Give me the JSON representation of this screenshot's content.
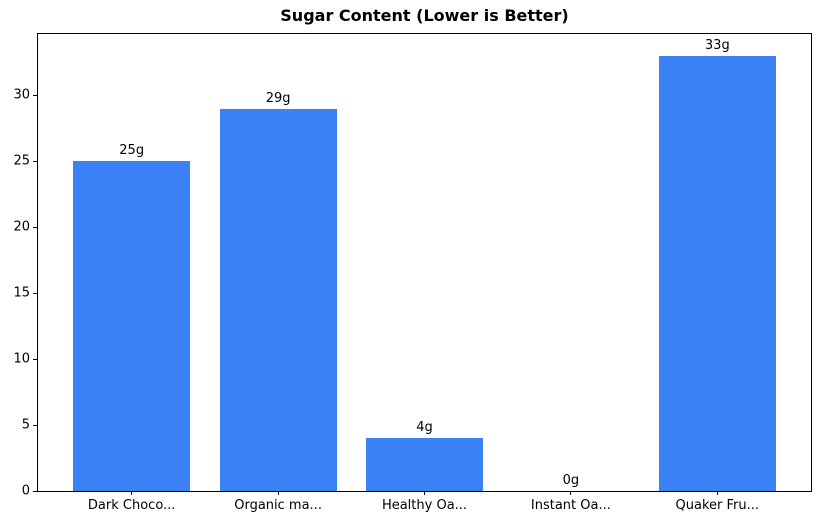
{
  "figure": {
    "title": "Sugar Content (Lower is Better)"
  },
  "chart_data": {
    "type": "bar",
    "title": "Sugar Content (Lower is Better)",
    "categories": [
      "Dark Choco...",
      "Organic ma...",
      "Healthy Oa...",
      "Instant Oa...",
      "Quaker Fru..."
    ],
    "values": [
      25,
      29,
      4,
      0,
      33
    ],
    "bar_labels": [
      "25g",
      "29g",
      "4g",
      "0g",
      "33g"
    ],
    "unit": "g",
    "xlabel": "",
    "ylabel": "",
    "yticks": [
      0,
      5,
      10,
      15,
      20,
      25,
      30
    ],
    "ylim": [
      0,
      34.65
    ],
    "xlim": [
      -0.64,
      4.64
    ],
    "bar_width": 0.8,
    "bar_color": "#3b82f6",
    "grid": false,
    "legend_position": "none"
  }
}
